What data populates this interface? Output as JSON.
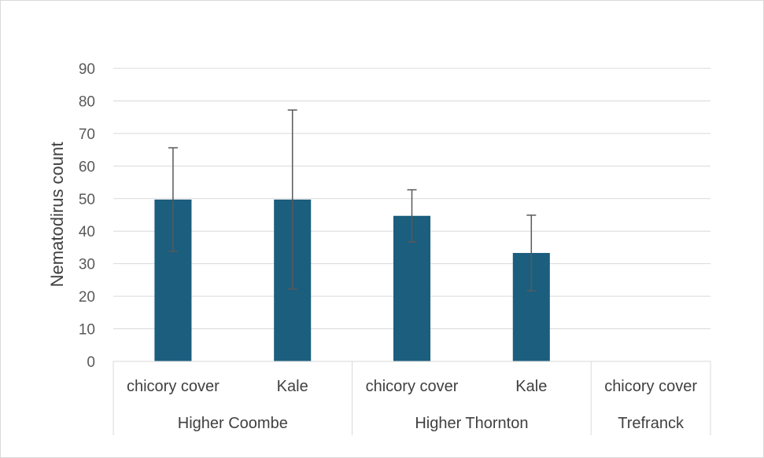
{
  "chart_data": {
    "type": "bar",
    "title": "",
    "xlabel": "",
    "ylabel": "Nematodirus count",
    "ylim": [
      0,
      90
    ],
    "yticks": [
      0,
      10,
      20,
      30,
      40,
      50,
      60,
      70,
      80,
      90
    ],
    "grid": true,
    "legend": "none",
    "bar_color": "#1b5e7e",
    "error_bar_color": "#595959",
    "groups": [
      {
        "name": "Higher Coombe",
        "categories": [
          "chicory cover",
          "Kale"
        ]
      },
      {
        "name": "Higher Thornton",
        "categories": [
          "chicory cover",
          "Kale"
        ]
      },
      {
        "name": "Trefranck",
        "categories": [
          "chicory cover"
        ]
      }
    ],
    "series": [
      {
        "values": [
          49.7,
          49.7,
          44.7,
          33.3,
          0
        ],
        "error_low": [
          33.8,
          22.2,
          36.7,
          21.7,
          0
        ],
        "error_high": [
          65.6,
          77.2,
          52.7,
          44.9,
          0
        ]
      }
    ]
  }
}
